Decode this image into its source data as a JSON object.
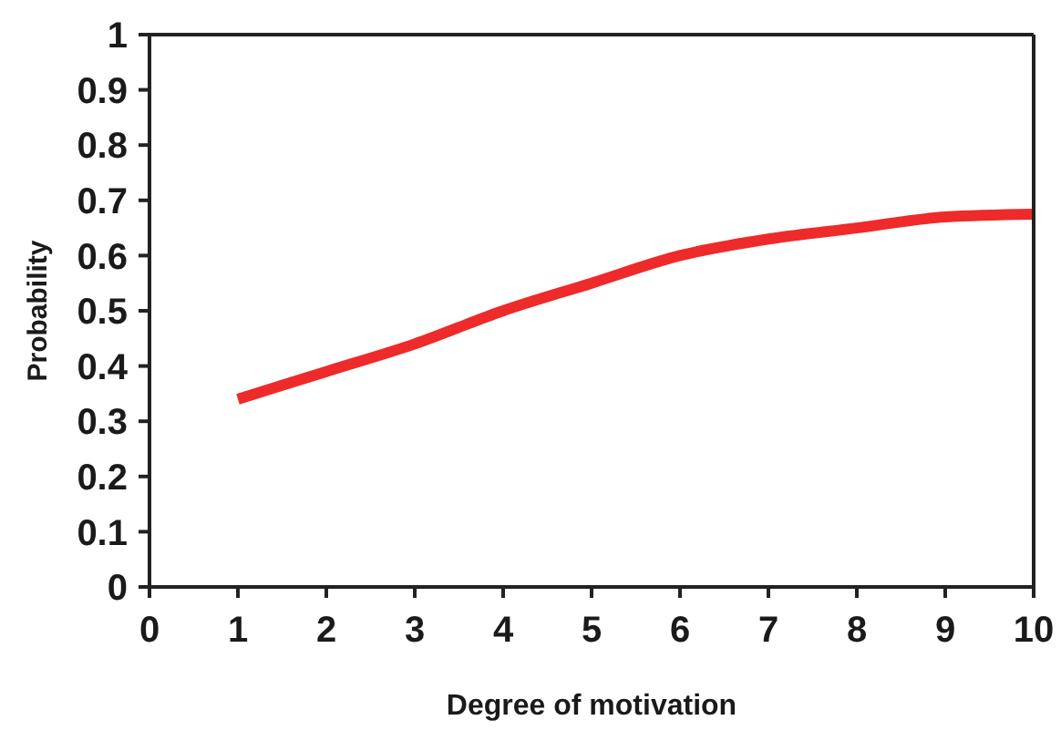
{
  "chart_data": {
    "type": "line",
    "xlabel": "Degree of motivation",
    "ylabel": "Probability",
    "x": [
      1,
      2,
      3,
      4,
      5,
      6,
      7,
      8,
      9,
      10
    ],
    "series": [
      {
        "color": "#ee2a2a",
        "values": [
          0.34,
          0.39,
          0.44,
          0.5,
          0.55,
          0.6,
          0.63,
          0.65,
          0.67,
          0.675
        ]
      }
    ],
    "xlim": [
      0,
      10
    ],
    "xticks": [
      0,
      1,
      2,
      3,
      4,
      5,
      6,
      7,
      8,
      9,
      10
    ],
    "ylim": [
      0,
      1
    ],
    "yticks": [
      0,
      0.1,
      0.2,
      0.3,
      0.4,
      0.5,
      0.6,
      0.7,
      0.8,
      0.9,
      1
    ],
    "grid": false,
    "legend": false,
    "marker": "none",
    "line_style": "solid"
  }
}
